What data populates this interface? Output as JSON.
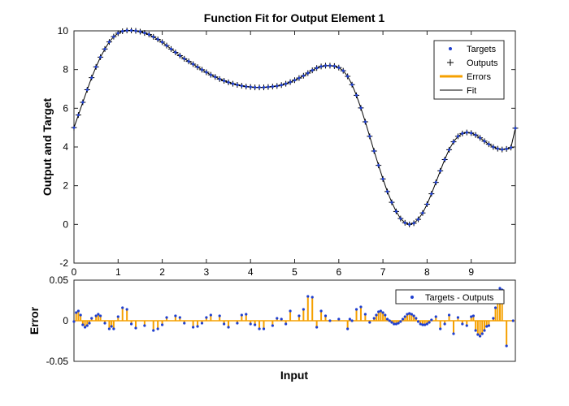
{
  "chart_data": [
    {
      "type": "line",
      "title": "Function Fit for Output Element 1",
      "xlabel": "",
      "ylabel": "Output and Target",
      "xlim": [
        0,
        10
      ],
      "ylim": [
        -2,
        10
      ],
      "xticks": [
        0,
        1,
        2,
        3,
        4,
        5,
        6,
        7,
        8,
        9
      ],
      "xtick_labels": [
        "0",
        "1",
        "2",
        "3",
        "4",
        "5",
        "6",
        "7",
        "8",
        "9"
      ],
      "yticks": [
        -2,
        0,
        2,
        4,
        6,
        8,
        10
      ],
      "ytick_labels": [
        "-2",
        "0",
        "2",
        "4",
        "6",
        "8",
        "10"
      ],
      "legend_position": "top-right",
      "legend": [
        "Targets",
        "Outputs",
        "Errors",
        "Fit"
      ],
      "x": [
        0,
        0.1,
        0.2,
        0.3,
        0.4,
        0.5,
        0.6,
        0.7,
        0.8,
        0.9,
        1.0,
        1.1,
        1.2,
        1.3,
        1.4,
        1.5,
        1.6,
        1.7,
        1.8,
        1.9,
        2.0,
        2.1,
        2.2,
        2.3,
        2.4,
        2.5,
        2.6,
        2.7,
        2.8,
        2.9,
        3.0,
        3.1,
        3.2,
        3.3,
        3.4,
        3.5,
        3.6,
        3.7,
        3.8,
        3.9,
        4.0,
        4.1,
        4.2,
        4.3,
        4.4,
        4.5,
        4.6,
        4.7,
        4.8,
        4.9,
        5.0,
        5.1,
        5.2,
        5.3,
        5.4,
        5.5,
        5.6,
        5.7,
        5.8,
        5.9,
        6.0,
        6.1,
        6.2,
        6.3,
        6.4,
        6.5,
        6.6,
        6.7,
        6.8,
        6.9,
        7.0,
        7.1,
        7.2,
        7.3,
        7.4,
        7.5,
        7.6,
        7.7,
        7.8,
        7.9,
        8.0,
        8.1,
        8.2,
        8.3,
        8.4,
        8.5,
        8.6,
        8.7,
        8.8,
        8.9,
        9.0,
        9.1,
        9.2,
        9.3,
        9.4,
        9.5,
        9.6,
        9.7,
        9.8,
        9.9,
        10.0
      ],
      "series": [
        {
          "name": "Fit",
          "values": [
            5.0,
            5.65,
            6.31,
            6.96,
            7.58,
            8.14,
            8.64,
            9.06,
            9.43,
            9.7,
            9.88,
            9.98,
            10.02,
            10.02,
            10.0,
            9.96,
            9.89,
            9.81,
            9.69,
            9.56,
            9.42,
            9.24,
            9.06,
            8.89,
            8.72,
            8.56,
            8.42,
            8.28,
            8.13,
            7.99,
            7.86,
            7.73,
            7.62,
            7.51,
            7.42,
            7.34,
            7.27,
            7.21,
            7.16,
            7.12,
            7.1,
            7.08,
            7.08,
            7.08,
            7.1,
            7.12,
            7.15,
            7.2,
            7.27,
            7.35,
            7.45,
            7.56,
            7.68,
            7.82,
            7.96,
            8.08,
            8.16,
            8.2,
            8.2,
            8.18,
            8.1,
            7.94,
            7.65,
            7.22,
            6.67,
            6.02,
            5.3,
            4.55,
            3.79,
            3.05,
            2.35,
            1.7,
            1.14,
            0.67,
            0.3,
            0.08,
            0.0,
            0.06,
            0.26,
            0.59,
            1.04,
            1.58,
            2.17,
            2.77,
            3.35,
            3.86,
            4.27,
            4.55,
            4.7,
            4.75,
            4.72,
            4.62,
            4.47,
            4.3,
            4.14,
            4.0,
            3.91,
            3.87,
            3.9,
            3.97,
            4.97
          ]
        }
      ]
    },
    {
      "type": "bar",
      "title": "",
      "xlabel": "Input",
      "ylabel": "Error",
      "xlim": [
        0,
        10
      ],
      "ylim": [
        -0.05,
        0.05
      ],
      "yticks": [
        -0.05,
        0,
        0.05
      ],
      "ytick_labels": [
        "-0.05",
        "0",
        "0.05"
      ],
      "legend_position": "top-right",
      "legend": [
        "Targets - Outputs"
      ],
      "x": [
        0.0,
        0.05,
        0.1,
        0.15,
        0.2,
        0.25,
        0.3,
        0.35,
        0.4,
        0.5,
        0.55,
        0.6,
        0.7,
        0.8,
        0.85,
        0.9,
        1.0,
        1.1,
        1.2,
        1.3,
        1.4,
        1.6,
        1.8,
        1.9,
        2.0,
        2.1,
        2.3,
        2.4,
        2.5,
        2.7,
        2.8,
        2.9,
        3.0,
        3.1,
        3.3,
        3.4,
        3.5,
        3.7,
        3.8,
        3.9,
        4.0,
        4.1,
        4.2,
        4.3,
        4.5,
        4.6,
        4.7,
        4.8,
        4.9,
        5.1,
        5.2,
        5.3,
        5.4,
        5.5,
        5.6,
        5.7,
        5.8,
        6.0,
        6.2,
        6.25,
        6.3,
        6.4,
        6.5,
        6.6,
        6.7,
        6.8,
        6.85,
        6.9,
        6.95,
        7.0,
        7.05,
        7.1,
        7.15,
        7.2,
        7.25,
        7.3,
        7.35,
        7.4,
        7.45,
        7.5,
        7.55,
        7.6,
        7.65,
        7.7,
        7.75,
        7.8,
        7.85,
        7.9,
        7.95,
        8.0,
        8.05,
        8.1,
        8.2,
        8.3,
        8.4,
        8.5,
        8.6,
        8.7,
        8.8,
        8.9,
        9.0,
        9.05,
        9.1,
        9.15,
        9.2,
        9.25,
        9.3,
        9.35,
        9.4,
        9.5,
        9.55,
        9.6,
        9.65,
        9.7,
        9.8,
        9.95
      ],
      "values": [
        -0.001,
        0.01,
        0.012,
        0.007,
        -0.005,
        -0.008,
        -0.006,
        -0.003,
        0.003,
        0.006,
        0.008,
        0.006,
        -0.003,
        -0.01,
        -0.007,
        -0.01,
        0.005,
        0.016,
        0.014,
        -0.004,
        -0.009,
        -0.006,
        -0.012,
        -0.01,
        -0.005,
        0.004,
        0.006,
        0.004,
        -0.003,
        -0.008,
        -0.007,
        -0.003,
        0.004,
        0.007,
        0.006,
        -0.004,
        -0.008,
        -0.003,
        0.007,
        0.008,
        -0.004,
        -0.005,
        -0.01,
        -0.01,
        -0.006,
        0.003,
        0.002,
        -0.004,
        0.012,
        0.006,
        0.014,
        0.03,
        0.029,
        -0.008,
        0.012,
        0.006,
        0.0,
        0.002,
        -0.01,
        0.002,
        0.0,
        0.014,
        0.017,
        0.008,
        -0.002,
        0.003,
        0.007,
        0.011,
        0.012,
        0.01,
        0.007,
        0.002,
        0.0,
        -0.002,
        -0.004,
        -0.004,
        -0.003,
        -0.001,
        0.002,
        0.005,
        0.008,
        0.009,
        0.008,
        0.006,
        0.003,
        -0.001,
        -0.004,
        -0.005,
        -0.005,
        -0.004,
        -0.002,
        0.001,
        0.005,
        -0.01,
        -0.004,
        0.007,
        -0.016,
        0.004,
        -0.004,
        -0.006,
        0.005,
        0.006,
        -0.012,
        -0.017,
        -0.019,
        -0.016,
        -0.012,
        -0.007,
        -0.006,
        0.003,
        0.016,
        0.028,
        0.04,
        0.038,
        -0.031,
        0.0
      ],
      "series": [
        {
          "name": "Targets - Outputs",
          "values_ref": "values"
        }
      ]
    }
  ]
}
